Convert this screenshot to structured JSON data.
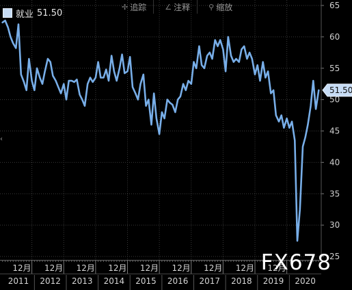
{
  "toolbar": {
    "track": {
      "label": "追踪",
      "icon": "crosshair-icon"
    },
    "annotate": {
      "label": "注释",
      "icon": "pencil-icon"
    },
    "zoom": {
      "label": "缩放",
      "icon": "magnifier-icon"
    }
  },
  "legend": {
    "label": "就业",
    "value": "51.50",
    "swatch_color": "#c7dcf5"
  },
  "watermark": "FX678",
  "chart_data": {
    "type": "line",
    "series": [
      {
        "name": "就业",
        "color": "#78aee8",
        "last_value_label": "51.50",
        "points": [
          [
            2011.0,
            62.3
          ],
          [
            2011.08,
            62.6
          ],
          [
            2011.17,
            61.5
          ],
          [
            2011.25,
            60.0
          ],
          [
            2011.33,
            59.0
          ],
          [
            2011.42,
            58.2
          ],
          [
            2011.5,
            62.0
          ],
          [
            2011.58,
            54.0
          ],
          [
            2011.67,
            52.8
          ],
          [
            2011.75,
            51.5
          ],
          [
            2011.83,
            56.5
          ],
          [
            2011.92,
            53.0
          ],
          [
            2012.0,
            51.5
          ],
          [
            2012.08,
            55.0
          ],
          [
            2012.17,
            53.5
          ],
          [
            2012.25,
            52.5
          ],
          [
            2012.33,
            54.5
          ],
          [
            2012.42,
            56.5
          ],
          [
            2012.5,
            56.0
          ],
          [
            2012.58,
            53.8
          ],
          [
            2012.67,
            53.0
          ],
          [
            2012.75,
            52.0
          ],
          [
            2012.83,
            51.0
          ],
          [
            2012.92,
            52.5
          ],
          [
            2013.0,
            50.0
          ],
          [
            2013.08,
            53.0
          ],
          [
            2013.17,
            53.0
          ],
          [
            2013.25,
            52.8
          ],
          [
            2013.33,
            53.2
          ],
          [
            2013.42,
            50.8
          ],
          [
            2013.5,
            50.0
          ],
          [
            2013.58,
            49.0
          ],
          [
            2013.67,
            52.5
          ],
          [
            2013.75,
            53.5
          ],
          [
            2013.83,
            52.8
          ],
          [
            2013.92,
            53.5
          ],
          [
            2014.0,
            56.0
          ],
          [
            2014.08,
            53.5
          ],
          [
            2014.17,
            53.5
          ],
          [
            2014.25,
            54.8
          ],
          [
            2014.33,
            53.0
          ],
          [
            2014.42,
            57.0
          ],
          [
            2014.5,
            54.5
          ],
          [
            2014.58,
            53.0
          ],
          [
            2014.67,
            55.0
          ],
          [
            2014.75,
            57.2
          ],
          [
            2014.83,
            54.2
          ],
          [
            2014.92,
            54.5
          ],
          [
            2015.0,
            56.8
          ],
          [
            2015.08,
            52.0
          ],
          [
            2015.17,
            51.0
          ],
          [
            2015.25,
            50.0
          ],
          [
            2015.33,
            52.5
          ],
          [
            2015.42,
            54.0
          ],
          [
            2015.5,
            49.0
          ],
          [
            2015.58,
            50.0
          ],
          [
            2015.67,
            46.0
          ],
          [
            2015.75,
            51.0
          ],
          [
            2015.83,
            47.0
          ],
          [
            2015.92,
            44.5
          ],
          [
            2016.0,
            48.0
          ],
          [
            2016.08,
            47.0
          ],
          [
            2016.17,
            50.0
          ],
          [
            2016.25,
            49.5
          ],
          [
            2016.33,
            49.2
          ],
          [
            2016.42,
            48.0
          ],
          [
            2016.5,
            50.0
          ],
          [
            2016.58,
            50.5
          ],
          [
            2016.67,
            52.5
          ],
          [
            2016.75,
            51.5
          ],
          [
            2016.83,
            53.0
          ],
          [
            2016.92,
            52.5
          ],
          [
            2017.0,
            56.0
          ],
          [
            2017.08,
            55.0
          ],
          [
            2017.17,
            58.5
          ],
          [
            2017.25,
            55.5
          ],
          [
            2017.33,
            55.0
          ],
          [
            2017.42,
            57.0
          ],
          [
            2017.5,
            57.5
          ],
          [
            2017.58,
            56.5
          ],
          [
            2017.67,
            59.5
          ],
          [
            2017.75,
            58.5
          ],
          [
            2017.83,
            59.5
          ],
          [
            2017.92,
            58.0
          ],
          [
            2018.0,
            54.5
          ],
          [
            2018.08,
            60.0
          ],
          [
            2018.17,
            57.0
          ],
          [
            2018.25,
            56.0
          ],
          [
            2018.33,
            56.5
          ],
          [
            2018.42,
            56.0
          ],
          [
            2018.5,
            58.0
          ],
          [
            2018.58,
            58.5
          ],
          [
            2018.67,
            56.5
          ],
          [
            2018.75,
            57.5
          ],
          [
            2018.83,
            56.5
          ],
          [
            2018.92,
            54.0
          ],
          [
            2019.0,
            55.5
          ],
          [
            2019.08,
            53.0
          ],
          [
            2019.17,
            56.0
          ],
          [
            2019.25,
            53.5
          ],
          [
            2019.33,
            54.5
          ],
          [
            2019.42,
            51.0
          ],
          [
            2019.5,
            51.5
          ],
          [
            2019.58,
            47.5
          ],
          [
            2019.67,
            46.5
          ],
          [
            2019.75,
            47.5
          ],
          [
            2019.83,
            45.5
          ],
          [
            2019.92,
            47.0
          ],
          [
            2020.0,
            45.5
          ],
          [
            2020.08,
            46.5
          ],
          [
            2020.17,
            43.5
          ],
          [
            2020.25,
            27.5
          ],
          [
            2020.33,
            32.5
          ],
          [
            2020.42,
            42.5
          ],
          [
            2020.5,
            44.0
          ],
          [
            2020.58,
            46.0
          ],
          [
            2020.67,
            49.0
          ],
          [
            2020.75,
            53.0
          ],
          [
            2020.83,
            48.5
          ],
          [
            2020.92,
            51.5
          ]
        ]
      }
    ],
    "ylim": [
      25,
      65
    ],
    "y_ticks": [
      25,
      30,
      35,
      40,
      45,
      50,
      55,
      60,
      65
    ],
    "xlim": [
      2010.92,
      2021.0
    ],
    "x_top_labels": [
      {
        "x": 2011.92,
        "label": "12月"
      },
      {
        "x": 2012.92,
        "label": "12月"
      },
      {
        "x": 2013.92,
        "label": "12月"
      },
      {
        "x": 2014.92,
        "label": "12月"
      },
      {
        "x": 2015.92,
        "label": "12月"
      },
      {
        "x": 2016.92,
        "label": "12月"
      },
      {
        "x": 2017.92,
        "label": "12月"
      },
      {
        "x": 2018.92,
        "label": "12月"
      },
      {
        "x": 2019.92,
        "label": "12月"
      }
    ],
    "x_year_labels": [
      {
        "x": 2011.5,
        "label": "2011"
      },
      {
        "x": 2012.5,
        "label": "2012"
      },
      {
        "x": 2013.5,
        "label": "2013"
      },
      {
        "x": 2014.5,
        "label": "2014"
      },
      {
        "x": 2015.5,
        "label": "2015"
      },
      {
        "x": 2016.5,
        "label": "2016"
      },
      {
        "x": 2017.5,
        "label": "2017"
      },
      {
        "x": 2018.5,
        "label": "2018"
      },
      {
        "x": 2019.5,
        "label": "2019"
      },
      {
        "x": 2020.5,
        "label": "2020"
      }
    ],
    "grid": true,
    "axis_side": "right"
  }
}
